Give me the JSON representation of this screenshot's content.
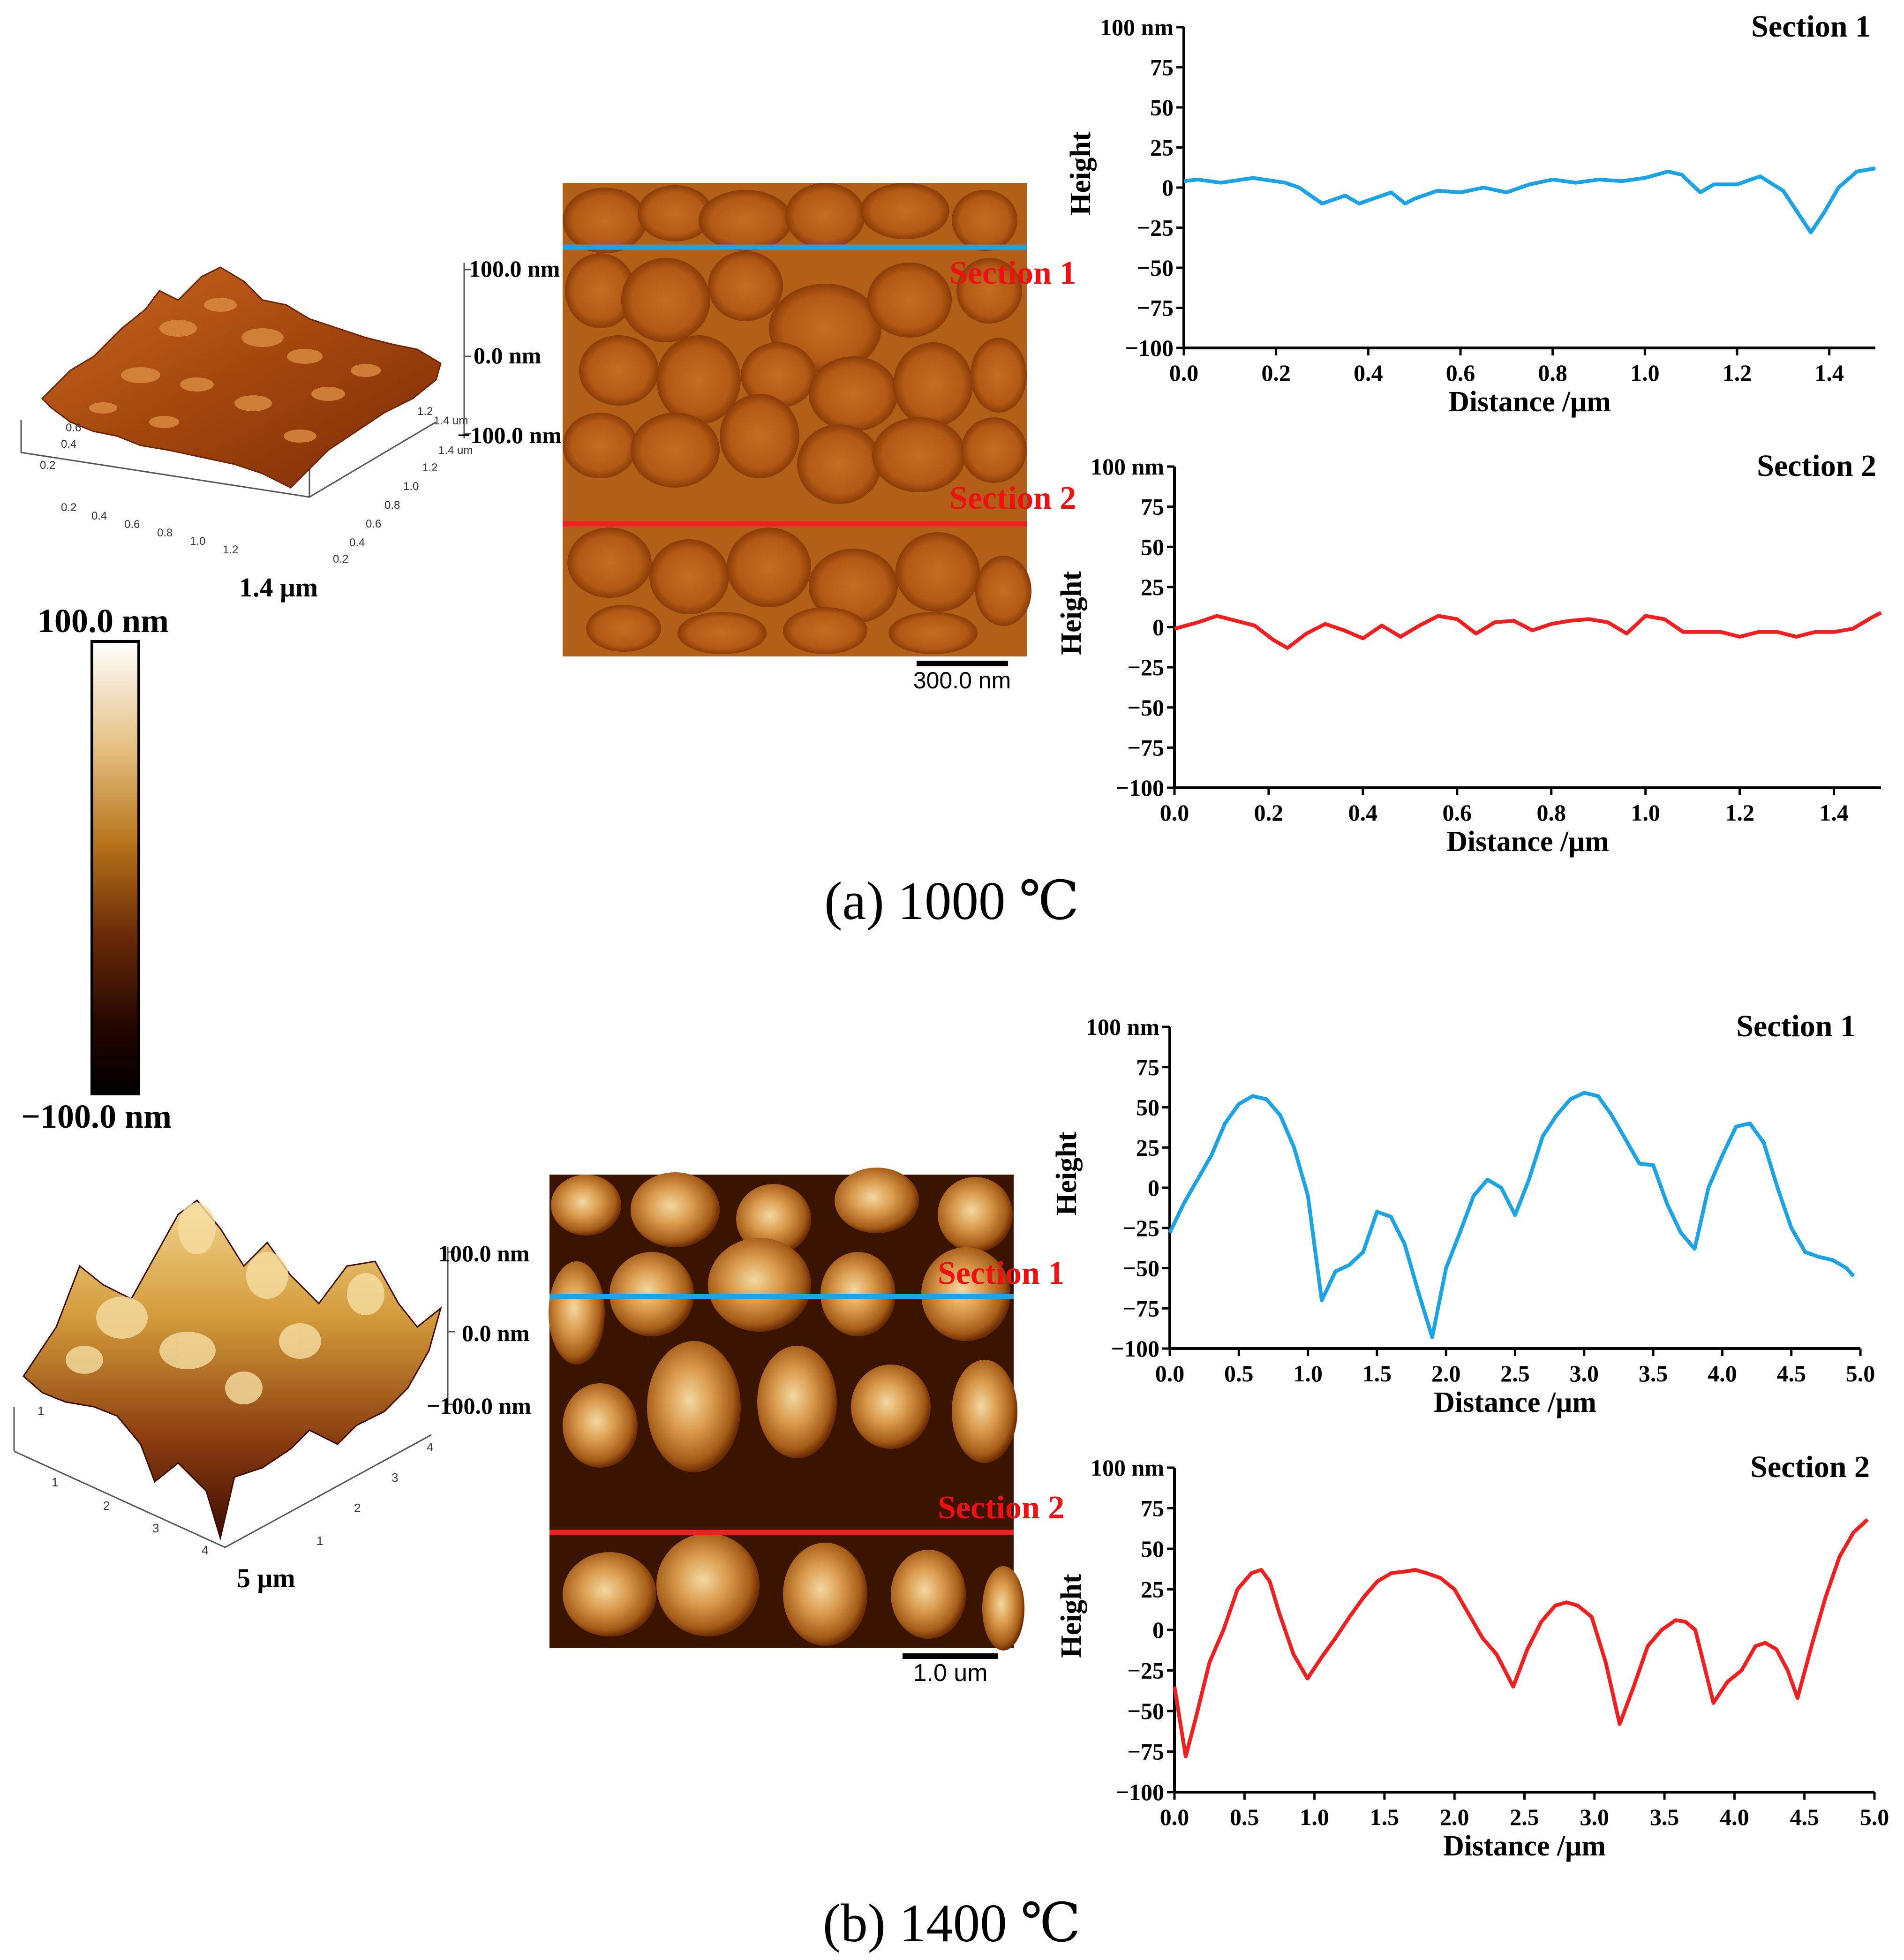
{
  "colors": {
    "section1_line": "#1ca3e6",
    "section2_line": "#f02020",
    "section_label": "#ee1111",
    "axis": "#000000",
    "afm_dark": "#3a1400",
    "afm_mid": "#a8540f",
    "afm_light": "#e8c27a"
  },
  "colorbar": {
    "top_label": "100.0 nm",
    "bottom_label": "−100.0 nm"
  },
  "panels": [
    {
      "caption": "(a) 1000 ℃",
      "surface3d": {
        "z_ticks": [
          "100.0 nm",
          "0.0 nm",
          "−100.0 nm"
        ],
        "axis_end_label": "1.4 μm",
        "front_ticks": [
          "0.2",
          "0.4",
          "0.6",
          "0.8",
          "1.0",
          "1.2"
        ],
        "side_ticks": [
          "0.2",
          "0.4",
          "0.6",
          "0.8",
          "1.0",
          "1.2",
          "1.4 um"
        ],
        "back_ticks": [
          "0.2",
          "0.4",
          "0.6"
        ],
        "rear_ticks": [
          "1.2",
          "1.4 um"
        ]
      },
      "afm_image": {
        "section1_label": "Section 1",
        "section2_label": "Section 2",
        "scale_bar_label": "300.0 nm"
      }
    },
    {
      "caption": "(b) 1400 ℃",
      "surface3d": {
        "z_ticks": [
          "100.0 nm",
          "0.0 nm",
          "−100.0 nm"
        ],
        "axis_end_label": "5 μm",
        "front_ticks": [
          "1",
          "2",
          "3",
          "4"
        ],
        "side_ticks": [
          "1",
          "2",
          "3",
          "4"
        ],
        "back_ticks": [
          "1"
        ],
        "rear_ticks": []
      },
      "afm_image": {
        "section1_label": "Section 1",
        "section2_label": "Section 2",
        "scale_bar_label": "1.0 um"
      }
    }
  ],
  "chart_data": [
    {
      "type": "line",
      "panel": "a",
      "title": "Section 1",
      "xlabel": "Distance /μm",
      "ylabel": "Height",
      "y_unit_label": "100 nm",
      "xlim": [
        0,
        1.5
      ],
      "ylim": [
        -100,
        100
      ],
      "xticks": [
        "0.0",
        "0.2",
        "0.4",
        "0.6",
        "0.8",
        "1.0",
        "1.2",
        "1.4"
      ],
      "yticks": [
        "75",
        "50",
        "25",
        "0",
        "−25",
        "−50",
        "−75",
        "−100"
      ],
      "series": [
        {
          "name": "Section 1",
          "color": "#1ca3e6",
          "x": [
            0,
            0.03,
            0.08,
            0.15,
            0.22,
            0.25,
            0.3,
            0.35,
            0.38,
            0.42,
            0.45,
            0.48,
            0.5,
            0.55,
            0.6,
            0.65,
            0.7,
            0.75,
            0.8,
            0.85,
            0.9,
            0.95,
            1.0,
            1.05,
            1.08,
            1.12,
            1.15,
            1.2,
            1.25,
            1.3,
            1.33,
            1.36,
            1.39,
            1.42,
            1.46,
            1.5
          ],
          "y": [
            4,
            5,
            3,
            6,
            3,
            0,
            -10,
            -5,
            -10,
            -6,
            -3,
            -10,
            -7,
            -2,
            -3,
            0,
            -3,
            2,
            5,
            3,
            5,
            4,
            6,
            10,
            8,
            -3,
            2,
            2,
            7,
            -2,
            -15,
            -28,
            -15,
            0,
            10,
            12
          ]
        }
      ]
    },
    {
      "type": "line",
      "panel": "a",
      "title": "Section 2",
      "xlabel": "Distance /μm",
      "ylabel": "Height",
      "y_unit_label": "100 nm",
      "xlim": [
        0,
        1.5
      ],
      "ylim": [
        -100,
        100
      ],
      "xticks": [
        "0.0",
        "0.2",
        "0.4",
        "0.6",
        "0.8",
        "1.0",
        "1.2",
        "1.4"
      ],
      "yticks": [
        "75",
        "50",
        "25",
        "0",
        "−25",
        "−50",
        "−75",
        "−100"
      ],
      "series": [
        {
          "name": "Section 2",
          "color": "#f02020",
          "x": [
            0,
            0.05,
            0.09,
            0.13,
            0.17,
            0.21,
            0.24,
            0.28,
            0.32,
            0.36,
            0.4,
            0.44,
            0.48,
            0.52,
            0.56,
            0.6,
            0.64,
            0.68,
            0.72,
            0.76,
            0.8,
            0.84,
            0.88,
            0.92,
            0.96,
            1.0,
            1.04,
            1.08,
            1.12,
            1.16,
            1.2,
            1.24,
            1.28,
            1.32,
            1.36,
            1.4,
            1.44,
            1.48,
            1.5
          ],
          "y": [
            -1,
            3,
            7,
            4,
            1,
            -8,
            -13,
            -4,
            2,
            -2,
            -7,
            1,
            -6,
            1,
            7,
            5,
            -4,
            3,
            4,
            -2,
            2,
            4,
            5,
            3,
            -4,
            7,
            5,
            -3,
            -3,
            -3,
            -6,
            -3,
            -3,
            -6,
            -3,
            -3,
            -1,
            6,
            9
          ]
        }
      ]
    },
    {
      "type": "line",
      "panel": "b",
      "title": "Section 1",
      "xlabel": "Distance /μm",
      "ylabel": "Height",
      "y_unit_label": "100 nm",
      "xlim": [
        0,
        5.0
      ],
      "ylim": [
        -100,
        100
      ],
      "xticks": [
        "0.0",
        "0.5",
        "1.0",
        "1.5",
        "2.0",
        "2.5",
        "3.0",
        "3.5",
        "4.0",
        "4.5",
        "5.0"
      ],
      "yticks": [
        "75",
        "50",
        "25",
        "0",
        "−25",
        "−50",
        "−75",
        "−100"
      ],
      "series": [
        {
          "name": "Section 1",
          "color": "#1ca3e6",
          "x": [
            0,
            0.1,
            0.2,
            0.3,
            0.4,
            0.5,
            0.6,
            0.7,
            0.8,
            0.9,
            1.0,
            1.1,
            1.2,
            1.3,
            1.4,
            1.5,
            1.6,
            1.7,
            1.8,
            1.9,
            2.0,
            2.1,
            2.2,
            2.3,
            2.4,
            2.5,
            2.6,
            2.7,
            2.8,
            2.9,
            3.0,
            3.1,
            3.2,
            3.3,
            3.4,
            3.5,
            3.6,
            3.7,
            3.8,
            3.9,
            4.0,
            4.1,
            4.2,
            4.3,
            4.4,
            4.5,
            4.6,
            4.7,
            4.8,
            4.9,
            4.95
          ],
          "y": [
            -28,
            -10,
            5,
            20,
            40,
            52,
            57,
            55,
            45,
            25,
            -5,
            -70,
            -52,
            -48,
            -40,
            -15,
            -18,
            -35,
            -65,
            -93,
            -50,
            -28,
            -5,
            5,
            0,
            -17,
            5,
            32,
            45,
            55,
            59,
            57,
            45,
            30,
            15,
            14,
            -10,
            -28,
            -38,
            0,
            20,
            38,
            40,
            28,
            0,
            -25,
            -40,
            -43,
            -45,
            -50,
            -55
          ]
        }
      ]
    },
    {
      "type": "line",
      "panel": "b",
      "title": "Section 2",
      "xlabel": "Distance /μm",
      "ylabel": "Height",
      "y_unit_label": "100 nm",
      "xlim": [
        0,
        5.0
      ],
      "ylim": [
        -100,
        100
      ],
      "xticks": [
        "0.0",
        "0.5",
        "1.0",
        "1.5",
        "2.0",
        "2.5",
        "3.0",
        "3.5",
        "4.0",
        "4.5",
        "5.0"
      ],
      "yticks": [
        "75",
        "50",
        "25",
        "0",
        "−25",
        "−50",
        "−75",
        "−100"
      ],
      "series": [
        {
          "name": "Section 2",
          "color": "#f02020",
          "x": [
            0,
            0.08,
            0.15,
            0.25,
            0.35,
            0.45,
            0.55,
            0.62,
            0.68,
            0.75,
            0.85,
            0.95,
            1.05,
            1.15,
            1.25,
            1.35,
            1.45,
            1.55,
            1.65,
            1.72,
            1.8,
            1.9,
            2.0,
            2.1,
            2.2,
            2.3,
            2.42,
            2.52,
            2.62,
            2.72,
            2.8,
            2.88,
            2.98,
            3.08,
            3.18,
            3.28,
            3.38,
            3.48,
            3.58,
            3.65,
            3.72,
            3.85,
            3.95,
            4.05,
            4.15,
            4.22,
            4.3,
            4.38,
            4.45,
            4.55,
            4.65,
            4.75,
            4.85,
            4.95
          ],
          "y": [
            -35,
            -78,
            -55,
            -20,
            0,
            25,
            35,
            37,
            30,
            10,
            -15,
            -30,
            -17,
            -5,
            8,
            20,
            30,
            35,
            36,
            37,
            35,
            32,
            25,
            10,
            -5,
            -15,
            -35,
            -12,
            5,
            15,
            17,
            15,
            8,
            -20,
            -58,
            -35,
            -10,
            0,
            6,
            5,
            0,
            -45,
            -32,
            -25,
            -10,
            -8,
            -12,
            -25,
            -42,
            -10,
            20,
            45,
            60,
            68
          ]
        }
      ]
    }
  ]
}
